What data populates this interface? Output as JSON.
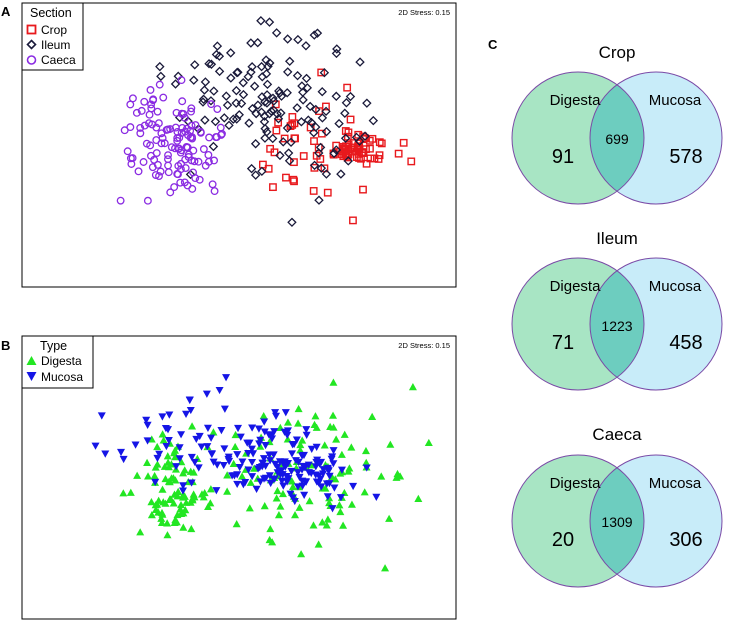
{
  "colors": {
    "crop": "#e8191d",
    "ileum": "#1a1a3a",
    "caeca": "#8a2be2",
    "digesta_marker": "#22e622",
    "mucosa_marker": "#1515e6",
    "digesta_circle": "#a8e5c4",
    "mucosa_circle": "#c8ecf9",
    "intersection": "#6dcdbf",
    "circle_stroke": "#7a4aa6"
  },
  "chart_data": [
    {
      "type": "scatter",
      "panel_label": "A",
      "stress_label": "2D Stress: 0.15",
      "legend_title": "Section",
      "xlim": [
        -2.0,
        2.0
      ],
      "ylim": [
        -2.0,
        2.0
      ],
      "series": [
        {
          "name": "Crop",
          "marker": "square",
          "color_key": "crop",
          "generator": {
            "seed": 11,
            "n": 95,
            "clusters": [
              {
                "w": 0.55,
                "mx": 1.09,
                "sx": 0.14,
                "my": -0.04,
                "sy": 0.1
              },
              {
                "w": 0.45,
                "mx": 0.6,
                "sx": 0.28,
                "my": 0.05,
                "sy": 0.45
              }
            ]
          }
        },
        {
          "name": "Ileum",
          "marker": "diamond",
          "color_key": "ileum",
          "generator": {
            "seed": 23,
            "n": 145,
            "clusters": [
              {
                "w": 0.6,
                "mx": 0.1,
                "sx": 0.33,
                "my": 0.75,
                "sy": 0.4
              },
              {
                "w": 0.4,
                "mx": 0.65,
                "sx": 0.28,
                "my": 0.25,
                "sy": 0.5
              }
            ]
          }
        },
        {
          "name": "Caeca",
          "marker": "circle",
          "color_key": "caeca",
          "generator": {
            "seed": 37,
            "n": 125,
            "clusters": [
              {
                "w": 1.0,
                "mx": -0.66,
                "sx": 0.24,
                "my": 0.05,
                "sy": 0.35
              }
            ]
          }
        }
      ]
    },
    {
      "type": "scatter",
      "panel_label": "B",
      "stress_label": "2D Stress: 0.15",
      "legend_title": "Type",
      "xlim": [
        -2.0,
        2.0
      ],
      "ylim": [
        -2.0,
        2.0
      ],
      "series": [
        {
          "name": "Digesta",
          "marker": "triangle-up",
          "color_key": "digesta_marker",
          "generator": {
            "seed": 53,
            "n": 200,
            "clusters": [
              {
                "w": 0.4,
                "mx": -0.65,
                "sx": 0.18,
                "my": -0.15,
                "sy": 0.35
              },
              {
                "w": 0.6,
                "mx": 0.6,
                "sx": 0.42,
                "my": 0.0,
                "sy": 0.55
              }
            ]
          }
        },
        {
          "name": "Mucosa",
          "marker": "triangle-down",
          "color_key": "mucosa_marker",
          "generator": {
            "seed": 71,
            "n": 185,
            "clusters": [
              {
                "w": 0.6,
                "mx": -0.1,
                "sx": 0.45,
                "my": 0.45,
                "sy": 0.35
              },
              {
                "w": 0.4,
                "mx": 0.65,
                "sx": 0.3,
                "my": 0.05,
                "sy": 0.2
              }
            ]
          }
        }
      ]
    },
    {
      "type": "venn",
      "panel_label": "C",
      "diagrams": [
        {
          "title": "Crop",
          "left_label": "Digesta",
          "right_label": "Mucosa",
          "left_only": "91",
          "overlap": "699",
          "right_only": "578"
        },
        {
          "title": "Ileum",
          "left_label": "Digesta",
          "right_label": "Mucosa",
          "left_only": "71",
          "overlap": "1223",
          "right_only": "458"
        },
        {
          "title": "Caeca",
          "left_label": "Digesta",
          "right_label": "Mucosa",
          "left_only": "20",
          "overlap": "1309",
          "right_only": "306"
        }
      ]
    }
  ]
}
